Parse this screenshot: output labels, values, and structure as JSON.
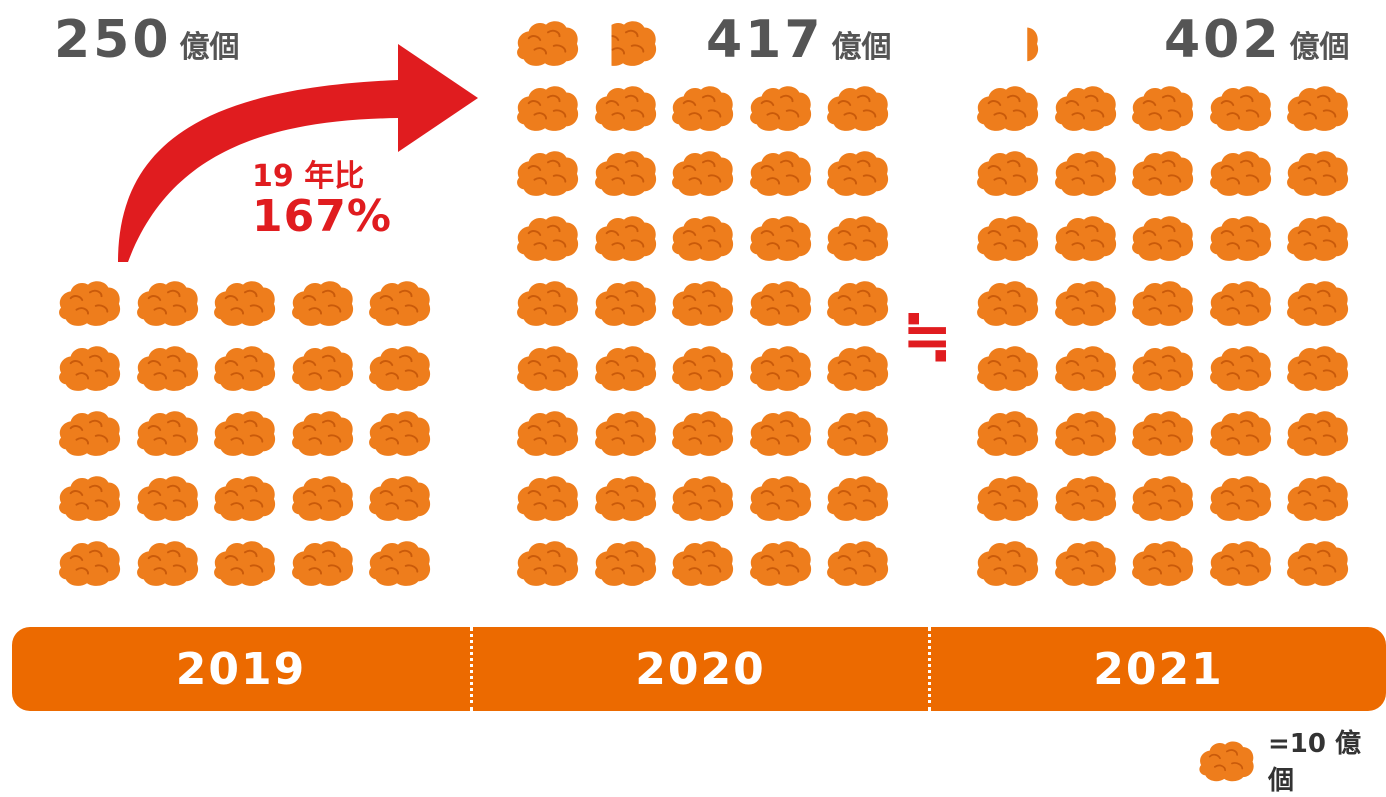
{
  "chart_data": {
    "type": "pictogram",
    "unit_text": "=10 億個",
    "categories": [
      "2019",
      "2020",
      "2021"
    ],
    "values": [
      250,
      417,
      402
    ],
    "value_unit": "億個",
    "icon_value": 10,
    "annotation": {
      "line1": "19 年比",
      "line2": "167%"
    },
    "approx_symbol": "≒"
  },
  "colors": {
    "nugget": "#ee7d1c",
    "nugget_dark": "#c95a0a",
    "accent_red": "#e01c1f",
    "timeline": "#ec6a00",
    "number_grey": "#555555"
  },
  "icon": "chicken-nugget-icon"
}
